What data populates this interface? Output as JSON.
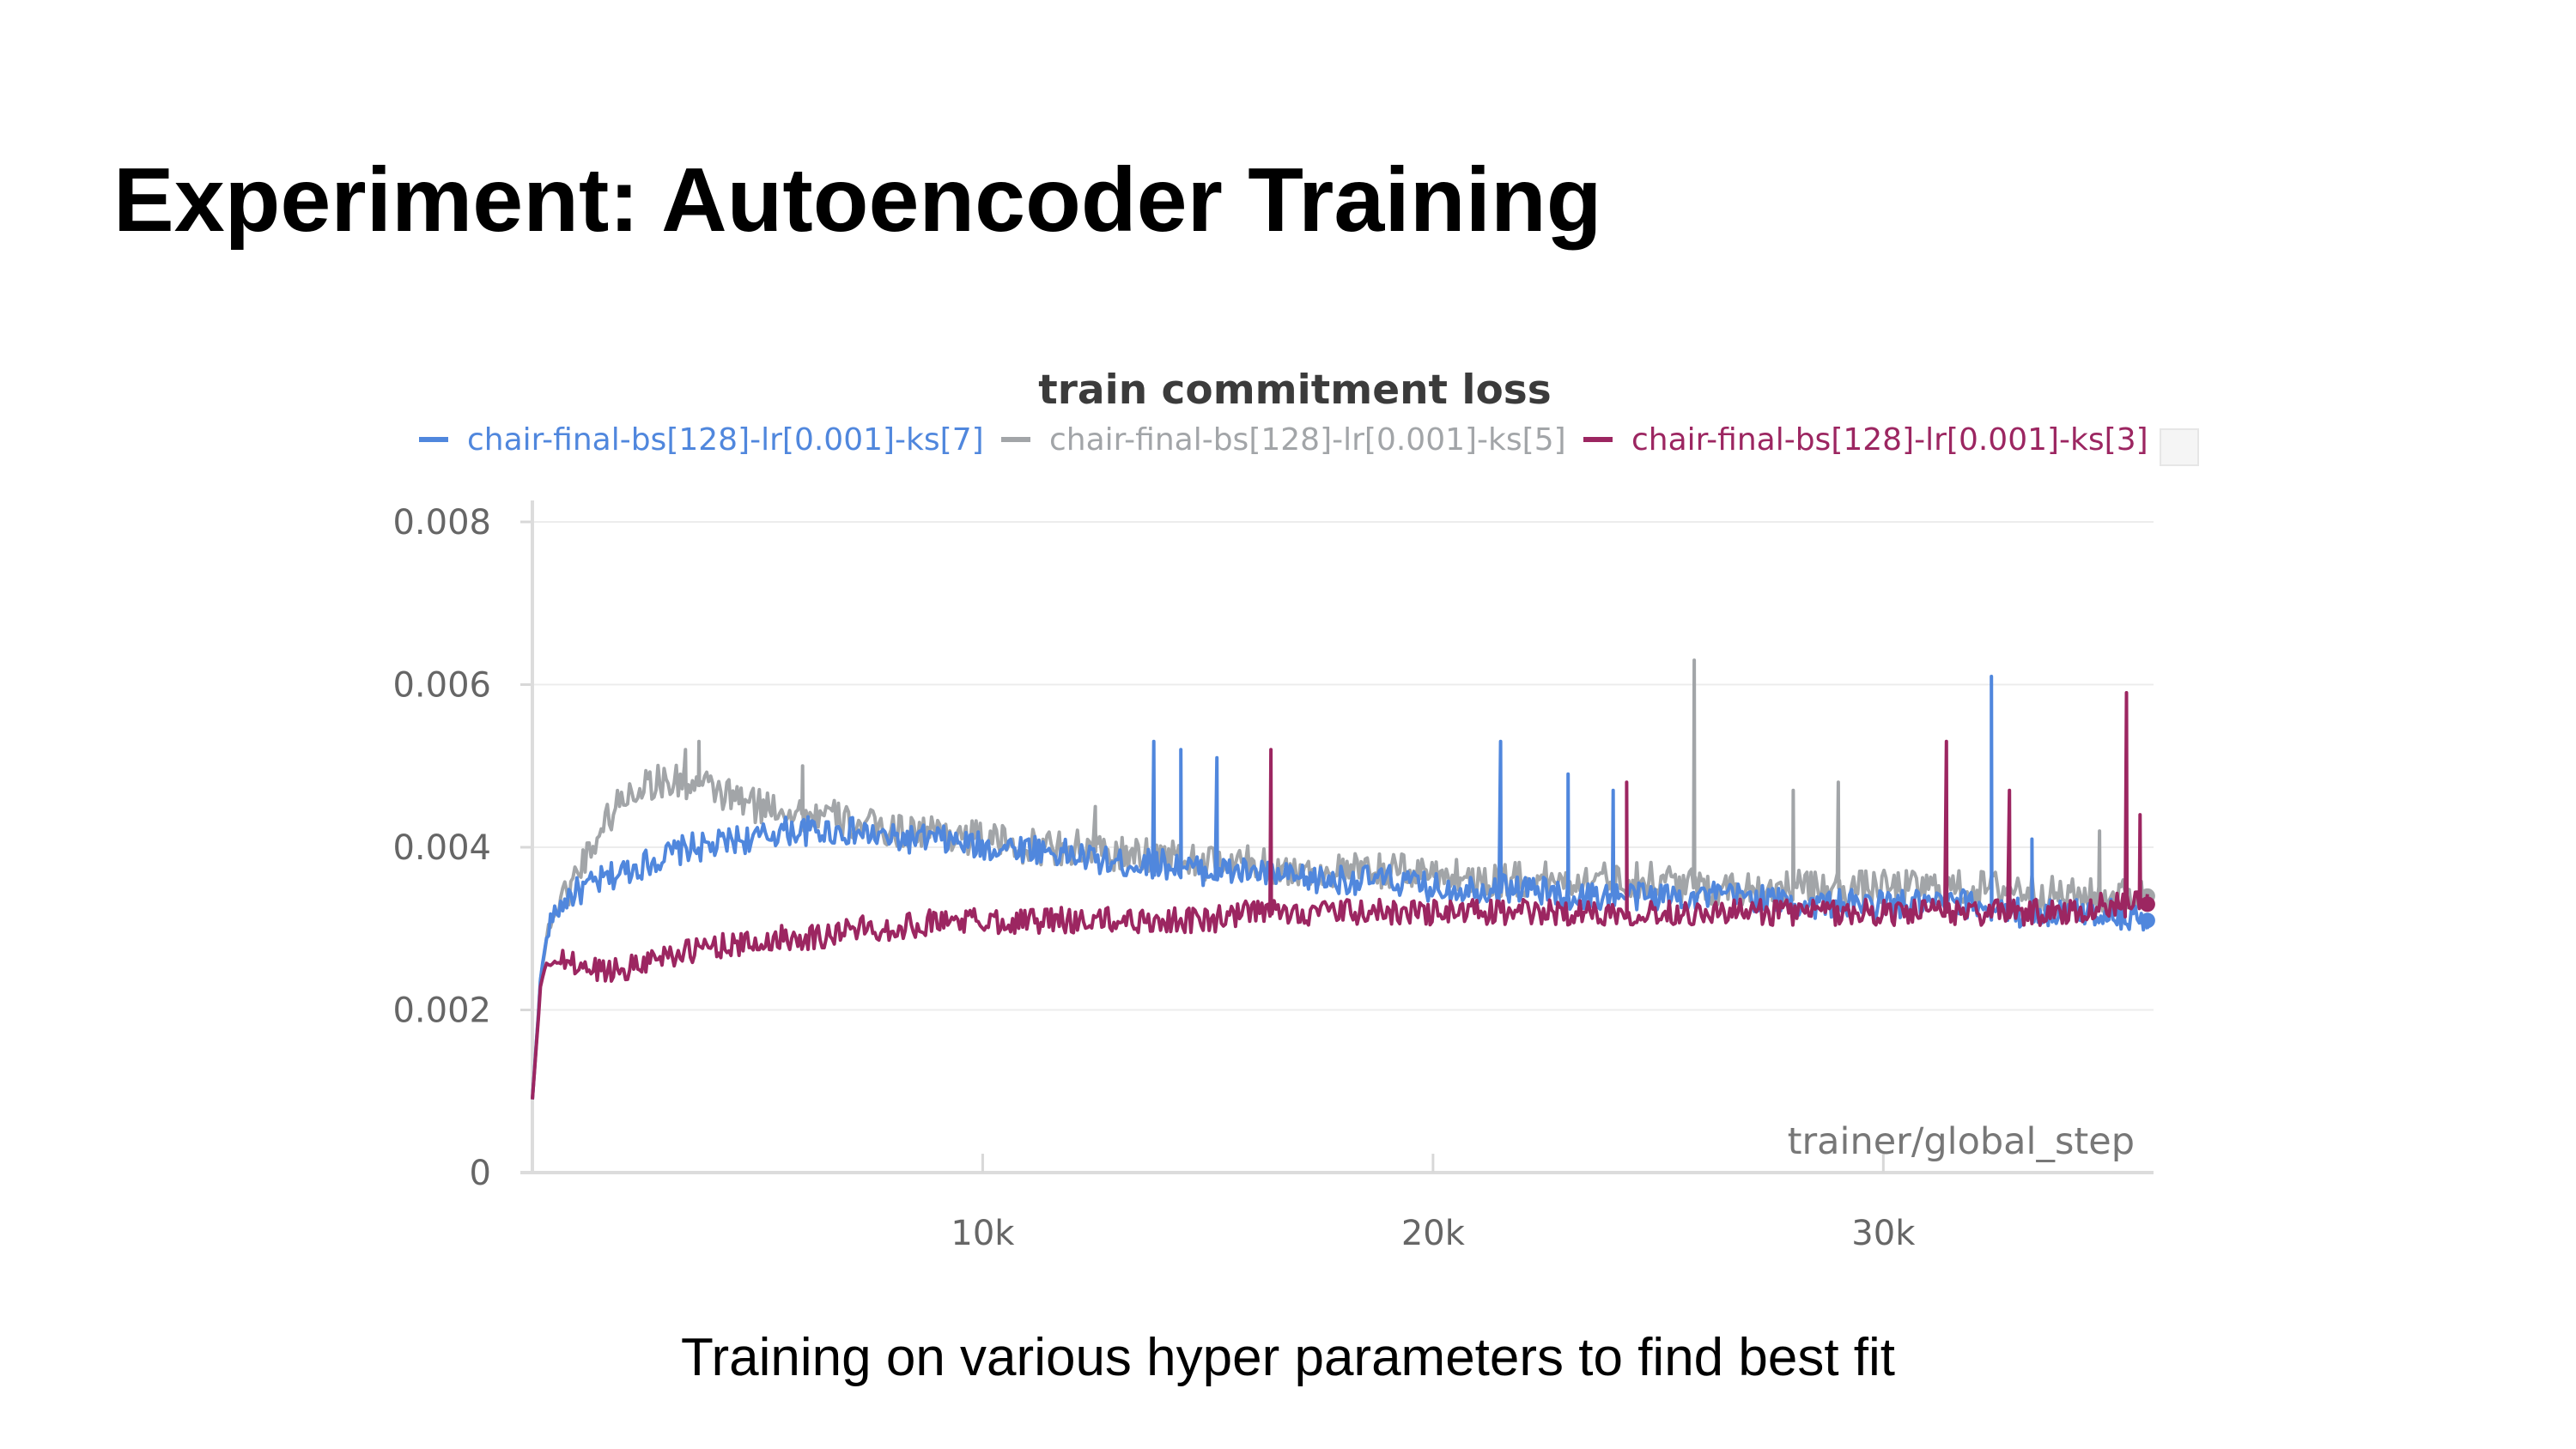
{
  "slide": {
    "title": "Experiment: Autoencoder Training",
    "caption": "Training on various hyper parameters to find best fit"
  },
  "chart_data": {
    "type": "line",
    "title": "train commitment loss",
    "xlabel": "trainer/global_step",
    "ylabel": "",
    "xlim": [
      0,
      36000
    ],
    "ylim": [
      0,
      0.008
    ],
    "x_ticks": [
      {
        "value": 10000,
        "label": "10k"
      },
      {
        "value": 20000,
        "label": "20k"
      },
      {
        "value": 30000,
        "label": "30k"
      }
    ],
    "y_ticks": [
      {
        "value": 0,
        "label": "0"
      },
      {
        "value": 0.002,
        "label": "0.002"
      },
      {
        "value": 0.004,
        "label": "0.004"
      },
      {
        "value": 0.006,
        "label": "0.006"
      },
      {
        "value": 0.008,
        "label": "0.008"
      }
    ],
    "grid": true,
    "legend_position": "top",
    "series": [
      {
        "name": "chair-final-bs[128]-lr[0.001]-ks[7]",
        "color": "#5087dd",
        "x": [
          0,
          200,
          400,
          800,
          1200,
          1600,
          2000,
          2500,
          3000,
          3500,
          4000,
          4500,
          5000,
          5500,
          6000,
          6500,
          7000,
          8000,
          9000,
          10000,
          11000,
          12000,
          13000,
          14000,
          15000,
          16000,
          17000,
          18000,
          19000,
          20000,
          21000,
          22000,
          23000,
          24000,
          25000,
          26000,
          27000,
          28000,
          29000,
          30000,
          31000,
          32000,
          33000,
          34000,
          35000,
          35900
        ],
        "values": [
          0.0009,
          0.0025,
          0.0031,
          0.0034,
          0.0035,
          0.0036,
          0.0037,
          0.0038,
          0.0039,
          0.004,
          0.004,
          0.0041,
          0.0041,
          0.0042,
          0.0042,
          0.0042,
          0.0042,
          0.0041,
          0.0041,
          0.004,
          0.004,
          0.0039,
          0.0038,
          0.0038,
          0.0037,
          0.0037,
          0.0036,
          0.0036,
          0.0036,
          0.0035,
          0.0035,
          0.0035,
          0.0034,
          0.0034,
          0.0034,
          0.0034,
          0.0034,
          0.0033,
          0.0033,
          0.0033,
          0.0033,
          0.0033,
          0.0032,
          0.0032,
          0.0032,
          0.0031
        ],
        "spikes": [
          [
            13800,
            0.0053
          ],
          [
            14400,
            0.0052
          ],
          [
            15200,
            0.0051
          ],
          [
            21500,
            0.0053
          ],
          [
            23000,
            0.0049
          ],
          [
            24000,
            0.0047
          ],
          [
            32400,
            0.0061
          ],
          [
            33300,
            0.0041
          ]
        ]
      },
      {
        "name": "chair-final-bs[128]-lr[0.001]-ks[5]",
        "color": "#a2a5a8",
        "x": [
          0,
          200,
          400,
          800,
          1200,
          1600,
          2000,
          2500,
          3000,
          3500,
          4000,
          4500,
          5000,
          5500,
          6000,
          6500,
          7000,
          8000,
          9000,
          10000,
          11000,
          12000,
          13000,
          14000,
          15000,
          16000,
          17000,
          18000,
          19000,
          20000,
          21000,
          22000,
          23000,
          24000,
          25000,
          26000,
          27000,
          28000,
          29000,
          30000,
          31000,
          32000,
          33000,
          34000,
          35000,
          35900
        ],
        "values": [
          0.0009,
          0.0025,
          0.0031,
          0.0035,
          0.0039,
          0.0043,
          0.0046,
          0.0048,
          0.0048,
          0.0048,
          0.0047,
          0.0046,
          0.0045,
          0.0045,
          0.0044,
          0.0044,
          0.0043,
          0.0042,
          0.0042,
          0.0041,
          0.004,
          0.004,
          0.0039,
          0.0039,
          0.0038,
          0.0038,
          0.0037,
          0.0037,
          0.0037,
          0.0037,
          0.0036,
          0.0036,
          0.0036,
          0.0036,
          0.0036,
          0.0035,
          0.0035,
          0.0035,
          0.0035,
          0.0035,
          0.0035,
          0.0035,
          0.0035,
          0.0034,
          0.0034,
          0.0034
        ],
        "spikes": [
          [
            3400,
            0.0052
          ],
          [
            3700,
            0.0053
          ],
          [
            6000,
            0.005
          ],
          [
            12500,
            0.0045
          ],
          [
            25800,
            0.0063
          ],
          [
            28000,
            0.0047
          ],
          [
            29000,
            0.0048
          ],
          [
            34800,
            0.0042
          ]
        ]
      },
      {
        "name": "chair-final-bs[128]-lr[0.001]-ks[3]",
        "color": "#9c2661",
        "x": [
          0,
          200,
          400,
          800,
          1200,
          1600,
          2000,
          2500,
          3000,
          3500,
          4000,
          4500,
          5000,
          5500,
          6000,
          6500,
          7000,
          8000,
          9000,
          10000,
          11000,
          12000,
          13000,
          14000,
          15000,
          16000,
          17000,
          18000,
          19000,
          20000,
          21000,
          22000,
          23000,
          24000,
          25000,
          26000,
          27000,
          28000,
          29000,
          30000,
          31000,
          32000,
          33000,
          34000,
          35000,
          35900
        ],
        "values": [
          0.0009,
          0.0024,
          0.0026,
          0.0026,
          0.0025,
          0.0025,
          0.0025,
          0.0026,
          0.0027,
          0.0027,
          0.0028,
          0.0028,
          0.0028,
          0.0029,
          0.0029,
          0.0029,
          0.003,
          0.003,
          0.0031,
          0.0031,
          0.0031,
          0.0031,
          0.0031,
          0.0031,
          0.0031,
          0.0032,
          0.0032,
          0.0032,
          0.0032,
          0.0032,
          0.0032,
          0.0032,
          0.0032,
          0.0032,
          0.0032,
          0.0032,
          0.0032,
          0.0032,
          0.0032,
          0.0032,
          0.0032,
          0.0032,
          0.0032,
          0.0032,
          0.0033,
          0.0033
        ],
        "spikes": [
          [
            16400,
            0.0052
          ],
          [
            24300,
            0.0048
          ],
          [
            31400,
            0.0053
          ],
          [
            32800,
            0.0047
          ],
          [
            35400,
            0.0059
          ],
          [
            35700,
            0.0044
          ]
        ]
      }
    ]
  }
}
